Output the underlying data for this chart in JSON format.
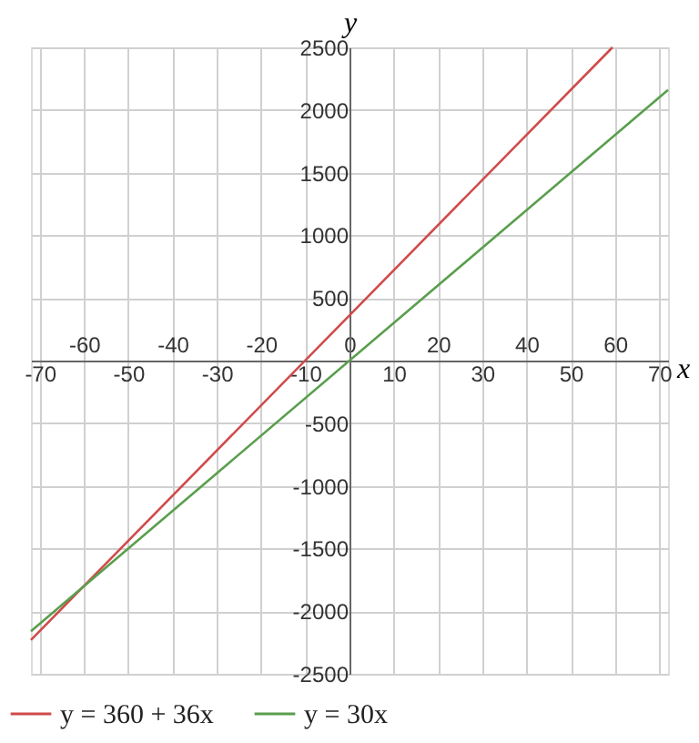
{
  "chart_data": {
    "type": "line",
    "xlabel": "x",
    "ylabel": "y",
    "xlim": [
      -72,
      72
    ],
    "ylim": [
      -2500,
      2500
    ],
    "xticks": [
      -70,
      -50,
      -30,
      -10,
      10,
      30,
      50,
      70
    ],
    "x2lim": [
      -72,
      72
    ],
    "x2ticks": [
      -60,
      -40,
      -20,
      0,
      20,
      40,
      60
    ],
    "yticks": [
      -2500,
      -2000,
      -1500,
      -1000,
      -500,
      {
        "value": 0,
        "label": null
      },
      500,
      1000,
      1500,
      2000,
      2500
    ],
    "grid": true,
    "legend": "bottom left",
    "line_style": "solid",
    "series": [
      {
        "name": "y = 360 + 36x",
        "color": "#d04a4a",
        "x": [
          -72,
          59.44
        ],
        "values": [
          -2230,
          2500
        ]
      },
      {
        "name": "y = 30x",
        "color": "#5a9e4e",
        "x": [
          -72,
          72
        ],
        "values": [
          -2160,
          2160
        ]
      }
    ]
  }
}
